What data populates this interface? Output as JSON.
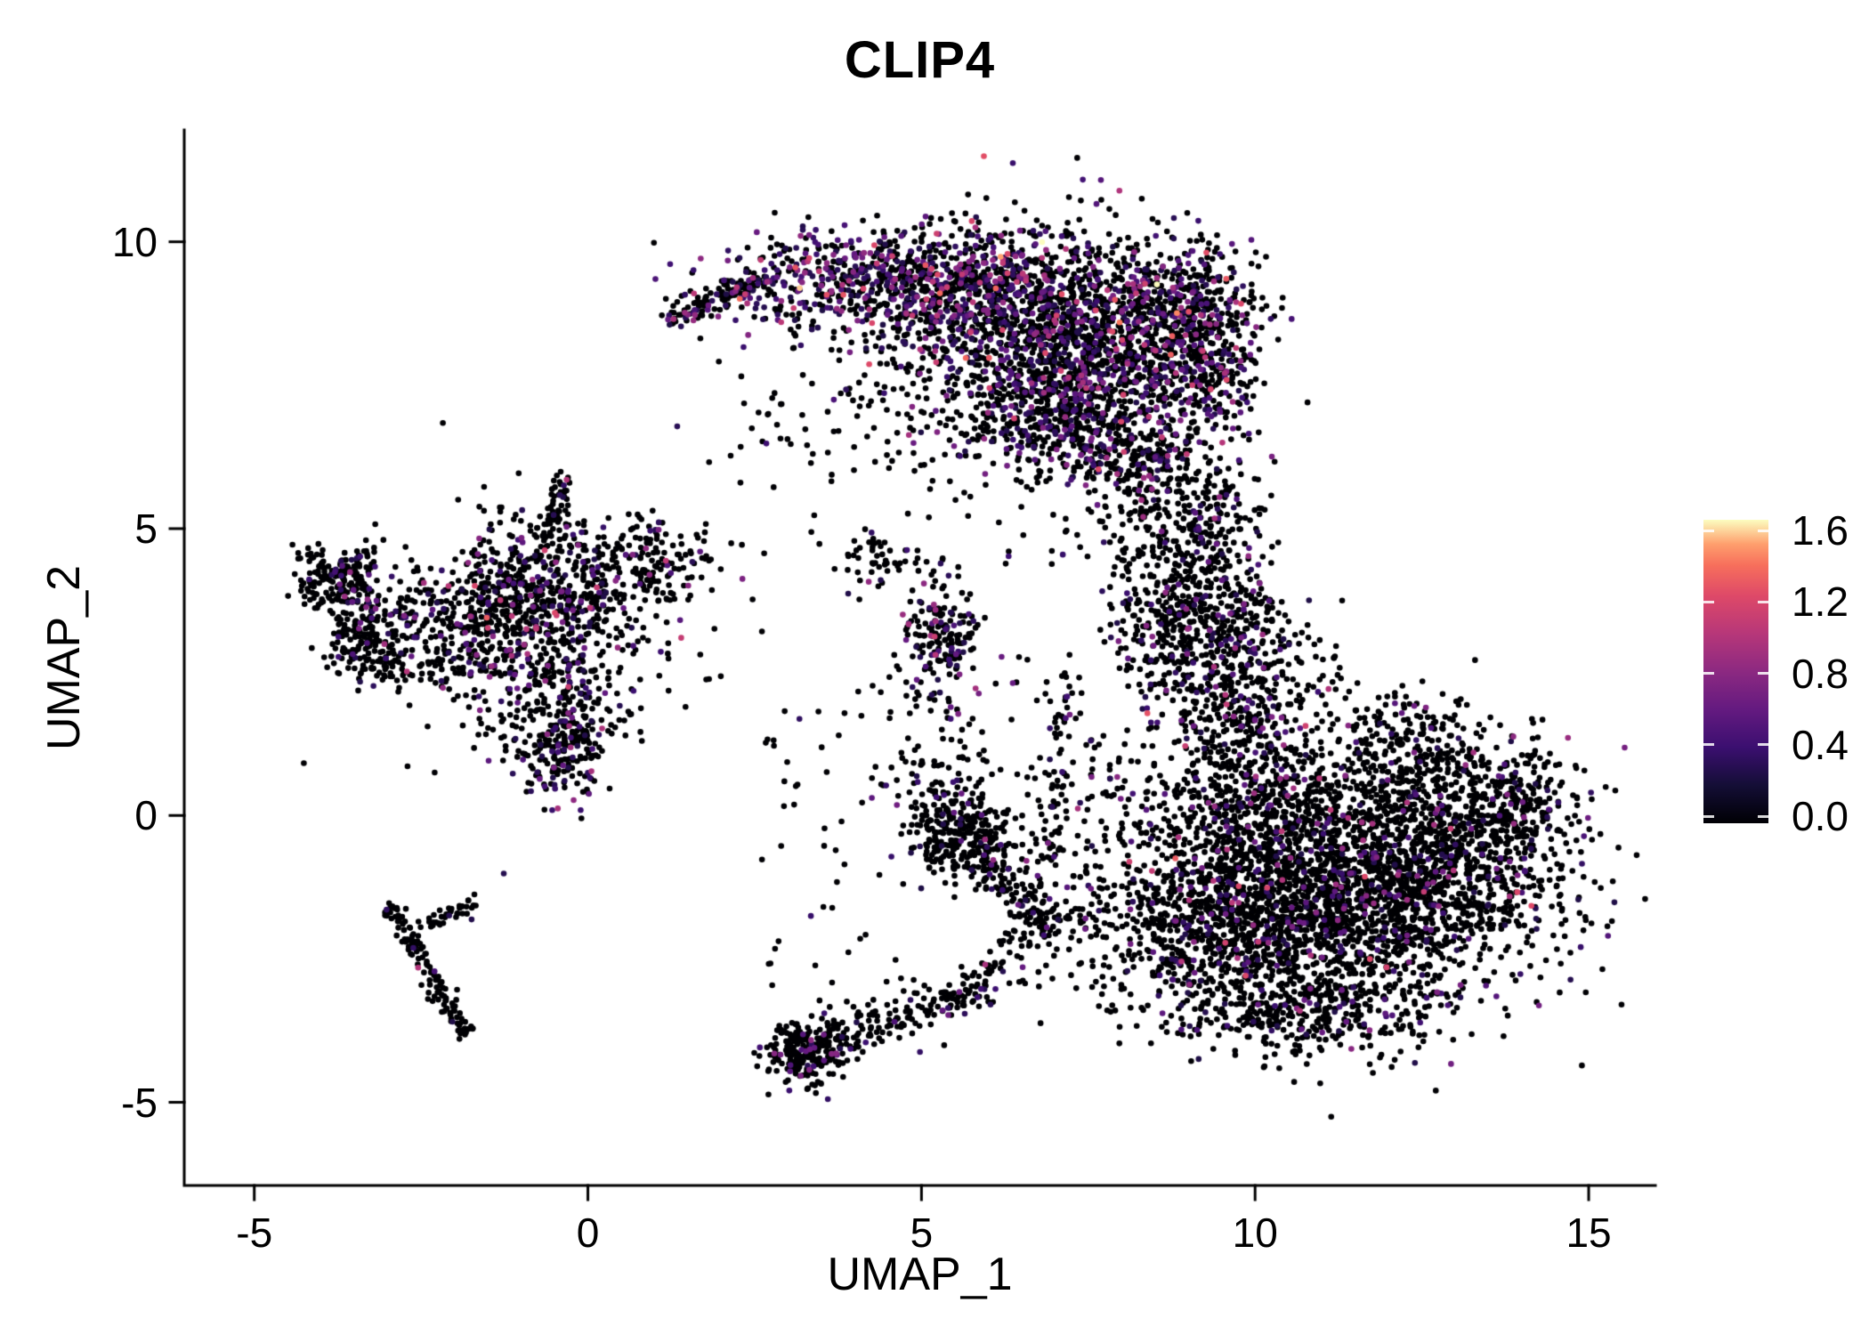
{
  "chart_data": {
    "type": "scatter",
    "title": "CLIP4",
    "xlabel": "UMAP_1",
    "ylabel": "UMAP_2",
    "xlim": [
      -6.05,
      16.0
    ],
    "ylim": [
      -6.45,
      11.95
    ],
    "xticks": [
      {
        "label": "-5",
        "value": -5
      },
      {
        "label": "0",
        "value": 0
      },
      {
        "label": "5",
        "value": 5
      },
      {
        "label": "10",
        "value": 10
      },
      {
        "label": "15",
        "value": 15
      }
    ],
    "yticks": [
      {
        "label": "10",
        "value": 10
      },
      {
        "label": "5",
        "value": 5
      },
      {
        "label": "0",
        "value": 0
      },
      {
        "label": "-5",
        "value": -5
      }
    ],
    "grid": false,
    "legend_position": "right",
    "point_radius": 3.3,
    "seed": 1337,
    "colorbar": {
      "vmin": 0.0,
      "vmax": 1.6,
      "colormap": "magma",
      "ticks": [
        "1.6",
        "1.2",
        "0.8",
        "0.4",
        "0.0"
      ],
      "values": [
        1.6,
        1.2,
        0.8,
        0.4,
        0.0
      ],
      "gradient": [
        {
          "pos": 0.0,
          "color": "#000004"
        },
        {
          "pos": 0.125,
          "color": "#140e36"
        },
        {
          "pos": 0.25,
          "color": "#3b0f70"
        },
        {
          "pos": 0.375,
          "color": "#641a80"
        },
        {
          "pos": 0.5,
          "color": "#8c2981"
        },
        {
          "pos": 0.625,
          "color": "#b73779"
        },
        {
          "pos": 0.75,
          "color": "#de4968"
        },
        {
          "pos": 0.85,
          "color": "#f76f5c"
        },
        {
          "pos": 0.92,
          "color": "#fe9f6d"
        },
        {
          "pos": 1.0,
          "color": "#fcfdbf"
        }
      ]
    },
    "clusters": [
      {
        "name": "top-crescent-a",
        "shape": "gauss",
        "cx": 4.6,
        "cy": 9.35,
        "sx": 1.25,
        "sy": 0.45,
        "n": 650,
        "expr_frac": 0.42,
        "expr_max": 1.5
      },
      {
        "name": "top-crescent-b",
        "shape": "gauss",
        "cx": 6.4,
        "cy": 8.9,
        "sx": 1.15,
        "sy": 0.75,
        "n": 900,
        "expr_frac": 0.3,
        "expr_max": 1.45
      },
      {
        "name": "top-crescent-c",
        "shape": "gauss",
        "cx": 7.9,
        "cy": 7.9,
        "sx": 1.0,
        "sy": 0.95,
        "n": 900,
        "expr_frac": 0.28,
        "expr_max": 1.4
      },
      {
        "name": "top-crescent-d",
        "shape": "gauss",
        "cx": 7.0,
        "cy": 6.9,
        "sx": 0.9,
        "sy": 0.6,
        "n": 420,
        "expr_frac": 0.25,
        "expr_max": 1.3
      },
      {
        "name": "top-crescent-e",
        "shape": "gauss",
        "cx": 8.85,
        "cy": 8.9,
        "sx": 0.5,
        "sy": 0.55,
        "n": 300,
        "expr_frac": 0.3,
        "expr_max": 1.4
      },
      {
        "name": "top-right-edge",
        "shape": "gauss",
        "cx": 9.4,
        "cy": 8.2,
        "sx": 0.3,
        "sy": 0.7,
        "n": 170,
        "expr_frac": 0.3,
        "expr_max": 1.3
      },
      {
        "name": "top-left-tip",
        "shape": "line",
        "x1": 1.3,
        "y1": 8.7,
        "x2": 2.7,
        "y2": 9.35,
        "jitter": 0.13,
        "n": 140,
        "expr_frac": 0.3,
        "expr_max": 1.4
      },
      {
        "name": "top-sparse-under",
        "shape": "gauss",
        "cx": 5.5,
        "cy": 7.8,
        "sx": 1.5,
        "sy": 0.85,
        "n": 240,
        "expr_frac": 0.2,
        "expr_max": 1.2
      },
      {
        "name": "top-lower-tip",
        "shape": "gauss",
        "cx": 8.3,
        "cy": 6.1,
        "sx": 0.45,
        "sy": 0.5,
        "n": 140,
        "expr_frac": 0.2,
        "expr_max": 1.2
      },
      {
        "name": "right-upper-column",
        "shape": "gauss",
        "cx": 9.6,
        "cy": 2.7,
        "sx": 0.6,
        "sy": 0.9,
        "n": 480,
        "expr_frac": 0.13,
        "expr_max": 1.2
      },
      {
        "name": "right-upper-sparse",
        "shape": "gauss",
        "cx": 9.0,
        "cy": 4.4,
        "sx": 0.5,
        "sy": 0.7,
        "n": 210,
        "expr_frac": 0.12,
        "expr_max": 1.1
      },
      {
        "name": "right-neck",
        "shape": "gauss",
        "cx": 9.4,
        "cy": 5.5,
        "sx": 0.35,
        "sy": 0.5,
        "n": 90,
        "expr_frac": 0.12,
        "expr_max": 1.1
      },
      {
        "name": "right-upper-west",
        "shape": "gauss",
        "cx": 8.7,
        "cy": 3.3,
        "sx": 0.5,
        "sy": 0.6,
        "n": 190,
        "expr_frac": 0.12,
        "expr_max": 1.1
      },
      {
        "name": "right-main",
        "shape": "gauss",
        "cx": 11.2,
        "cy": -1.4,
        "sx": 1.5,
        "sy": 1.05,
        "n": 2400,
        "expr_frac": 0.1,
        "expr_max": 1.3
      },
      {
        "name": "right-east",
        "shape": "gauss",
        "cx": 12.9,
        "cy": -0.4,
        "sx": 0.85,
        "sy": 0.85,
        "n": 650,
        "expr_frac": 0.1,
        "expr_max": 1.2
      },
      {
        "name": "right-north",
        "shape": "gauss",
        "cx": 10.1,
        "cy": 0.6,
        "sx": 0.8,
        "sy": 0.85,
        "n": 500,
        "expr_frac": 0.17,
        "expr_max": 1.25
      },
      {
        "name": "right-west",
        "shape": "gauss",
        "cx": 9.4,
        "cy": -2.1,
        "sx": 0.7,
        "sy": 0.8,
        "n": 400,
        "expr_frac": 0.12,
        "expr_max": 1.2
      },
      {
        "name": "right-east-tip",
        "shape": "gauss",
        "cx": 14.1,
        "cy": 0.2,
        "sx": 0.35,
        "sy": 0.5,
        "n": 130,
        "expr_frac": 0.1,
        "expr_max": 1.1
      },
      {
        "name": "right-south",
        "shape": "gauss",
        "cx": 10.9,
        "cy": -3.4,
        "sx": 1.0,
        "sy": 0.4,
        "n": 280,
        "expr_frac": 0.09,
        "expr_max": 1.1
      },
      {
        "name": "right-northeast",
        "shape": "gauss",
        "cx": 12.4,
        "cy": 1.2,
        "sx": 0.6,
        "sy": 0.5,
        "n": 200,
        "expr_frac": 0.1,
        "expr_max": 1.1
      },
      {
        "name": "left-core",
        "shape": "gauss",
        "cx": -0.8,
        "cy": 3.9,
        "sx": 0.7,
        "sy": 0.65,
        "n": 450,
        "expr_frac": 0.2,
        "expr_max": 1.3
      },
      {
        "name": "left-lower",
        "shape": "gauss",
        "cx": -0.5,
        "cy": 2.3,
        "sx": 0.55,
        "sy": 0.7,
        "n": 280,
        "expr_frac": 0.25,
        "expr_max": 1.2
      },
      {
        "name": "left-streak",
        "shape": "gauss",
        "cx": -0.35,
        "cy": 1.15,
        "sx": 0.28,
        "sy": 0.45,
        "n": 160,
        "expr_frac": 0.22,
        "expr_max": 1.1
      },
      {
        "name": "left-east-arm",
        "shape": "gauss",
        "cx": 0.85,
        "cy": 4.45,
        "sx": 0.55,
        "sy": 0.35,
        "n": 150,
        "expr_frac": 0.15,
        "expr_max": 1.2
      },
      {
        "name": "left-west",
        "shape": "gauss",
        "cx": -1.8,
        "cy": 3.3,
        "sx": 0.5,
        "sy": 0.5,
        "n": 200,
        "expr_frac": 0.15,
        "expr_max": 1.2
      },
      {
        "name": "left-halo",
        "shape": "gauss",
        "cx": -0.4,
        "cy": 3.2,
        "sx": 1.35,
        "sy": 1.2,
        "n": 220,
        "expr_frac": 0.12,
        "expr_max": 1.1
      },
      {
        "name": "left-top-spur",
        "shape": "line",
        "x1": -0.6,
        "y1": 4.9,
        "x2": -0.35,
        "y2": 5.85,
        "jitter": 0.1,
        "n": 50,
        "expr_frac": 0.12,
        "expr_max": 1.0
      },
      {
        "name": "farleft-upper",
        "shape": "gauss",
        "cx": -3.7,
        "cy": 4.2,
        "sx": 0.33,
        "sy": 0.3,
        "n": 170,
        "expr_frac": 0.12,
        "expr_max": 1.2
      },
      {
        "name": "farleft-lower",
        "shape": "gauss",
        "cx": -3.3,
        "cy": 3.3,
        "sx": 0.35,
        "sy": 0.45,
        "n": 180,
        "expr_frac": 0.16,
        "expr_max": 1.3
      },
      {
        "name": "farleft-tail",
        "shape": "gauss",
        "cx": -2.95,
        "cy": 2.75,
        "sx": 0.45,
        "sy": 0.3,
        "n": 80,
        "expr_frac": 0.1,
        "expr_max": 1.1
      },
      {
        "name": "bottomleft-diagonal",
        "shape": "line",
        "x1": -3.0,
        "y1": -1.55,
        "x2": -1.85,
        "y2": -3.8,
        "jitter": 0.09,
        "n": 130,
        "expr_frac": 0.06,
        "expr_max": 1.0
      },
      {
        "name": "bottomleft-spur",
        "shape": "line",
        "x1": -2.55,
        "y1": -1.95,
        "x2": -1.6,
        "y2": -1.45,
        "jitter": 0.08,
        "n": 40,
        "expr_frac": 0.1,
        "expr_max": 1.0
      },
      {
        "name": "center-sparse-x",
        "shape": "gauss",
        "cx": 4.35,
        "cy": 4.45,
        "sx": 0.4,
        "sy": 0.3,
        "n": 60,
        "expr_frac": 0.08,
        "expr_max": 1.0
      },
      {
        "name": "center-blob",
        "shape": "gauss",
        "cx": 5.3,
        "cy": 3.15,
        "sx": 0.27,
        "sy": 0.42,
        "n": 170,
        "expr_frac": 0.3,
        "expr_max": 1.2
      },
      {
        "name": "center-trail",
        "shape": "line",
        "x1": 5.0,
        "y1": 2.4,
        "x2": 5.6,
        "y2": 1.6,
        "jitter": 0.15,
        "n": 20,
        "expr_frac": 0.1,
        "expr_max": 1.0
      },
      {
        "name": "bottomcenter-core",
        "shape": "gauss",
        "cx": 5.6,
        "cy": -0.35,
        "sx": 0.38,
        "sy": 0.38,
        "n": 300,
        "expr_frac": 0.08,
        "expr_max": 1.1
      },
      {
        "name": "bottomcenter-tail",
        "shape": "line",
        "x1": 5.9,
        "y1": -0.9,
        "x2": 7.0,
        "y2": -1.9,
        "jitter": 0.2,
        "n": 110,
        "expr_frac": 0.08,
        "expr_max": 1.0
      },
      {
        "name": "bottomcenter-top",
        "shape": "gauss",
        "cx": 5.3,
        "cy": 0.45,
        "sx": 0.45,
        "sy": 0.5,
        "n": 70,
        "expr_frac": 0.08,
        "expr_max": 1.0
      },
      {
        "name": "midgap-scatter",
        "shape": "uniform",
        "x1": 6.3,
        "y1": -3.0,
        "x2": 8.6,
        "y2": -1.2,
        "n": 120,
        "expr_frac": 0.08,
        "expr_max": 1.0
      },
      {
        "name": "left-edge-column",
        "shape": "line",
        "x1": 6.9,
        "y1": -1.0,
        "x2": 7.1,
        "y2": 2.4,
        "jitter": 0.18,
        "n": 90,
        "expr_frac": 0.1,
        "expr_max": 1.0
      },
      {
        "name": "gap-sparse",
        "shape": "gauss",
        "cx": 8.0,
        "cy": 0.3,
        "sx": 0.5,
        "sy": 0.9,
        "n": 90,
        "expr_frac": 0.1,
        "expr_max": 1.0
      },
      {
        "name": "bottom-blob",
        "shape": "gauss",
        "cx": 3.25,
        "cy": -4.15,
        "sx": 0.3,
        "sy": 0.28,
        "n": 230,
        "expr_frac": 0.13,
        "expr_max": 1.1
      },
      {
        "name": "bottom-tail",
        "shape": "line",
        "x1": 3.5,
        "y1": -3.95,
        "x2": 5.9,
        "y2": -3.05,
        "jitter": 0.22,
        "n": 170,
        "expr_frac": 0.08,
        "expr_max": 1.0
      },
      {
        "name": "bottom-tail-up",
        "shape": "line",
        "x1": 5.9,
        "y1": -3.0,
        "x2": 6.4,
        "y2": -2.1,
        "jitter": 0.15,
        "n": 40,
        "expr_frac": 0.08,
        "expr_max": 1.0
      },
      {
        "name": "gap-noise-east",
        "shape": "uniform",
        "x1": 6.0,
        "y1": 4.3,
        "x2": 9.0,
        "y2": 6.3,
        "n": 70,
        "expr_frac": 0.08,
        "expr_max": 1.0
      },
      {
        "name": "gap-noise-west",
        "shape": "uniform",
        "x1": 2.0,
        "y1": 4.8,
        "x2": 6.0,
        "y2": 7.5,
        "n": 40,
        "expr_frac": 0.06,
        "expr_max": 1.0
      },
      {
        "name": "sparse-left-mid",
        "shape": "uniform",
        "x1": 2.6,
        "y1": -3.5,
        "x2": 5.0,
        "y2": 2.5,
        "n": 55,
        "expr_frac": 0.06,
        "expr_max": 1.0
      },
      {
        "name": "sparse-center",
        "shape": "uniform",
        "x1": 4.0,
        "y1": 0.2,
        "x2": 6.5,
        "y2": 2.8,
        "n": 35,
        "expr_frac": 0.06,
        "expr_max": 1.0
      }
    ]
  }
}
